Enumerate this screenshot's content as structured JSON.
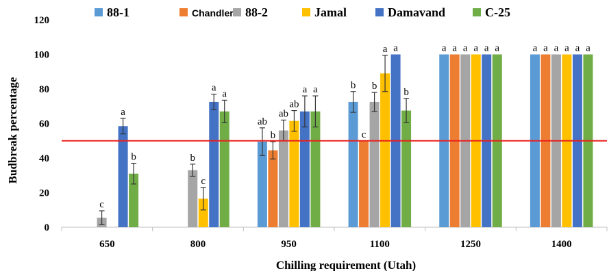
{
  "chart_data": {
    "type": "bar",
    "xlabel": "Chilling requirement (Utah)",
    "ylabel": "Budbreak percentage",
    "ylim": [
      0,
      120
    ],
    "yticks": [
      0,
      20,
      40,
      60,
      80,
      100,
      120
    ],
    "categories": [
      "650",
      "800",
      "950",
      "1100",
      "1250",
      "1400"
    ],
    "legend_position": "top",
    "reference_line": {
      "y": 50,
      "color": "#e8211e"
    },
    "series": [
      {
        "name": "88-1",
        "color": "#5b9bd5",
        "values": [
          0,
          0,
          49.5,
          72.5,
          100,
          100
        ],
        "errors": [
          0,
          0,
          8,
          6,
          0,
          0
        ],
        "labels": [
          "",
          "",
          "ab",
          "b",
          "a",
          "a"
        ]
      },
      {
        "name": "Chandler",
        "color": "#ed7d31",
        "values": [
          0,
          0,
          44.5,
          50,
          100,
          100
        ],
        "errors": [
          0,
          0,
          5,
          0,
          0,
          0
        ],
        "labels": [
          "",
          "",
          "b",
          "c",
          "a",
          "a"
        ]
      },
      {
        "name": "88-2",
        "color": "#a5a5a5",
        "values": [
          5.5,
          33,
          56,
          72.5,
          100,
          100
        ],
        "errors": [
          4,
          3.5,
          6,
          5.5,
          0,
          0
        ],
        "labels": [
          "c",
          "b",
          "ab",
          "b",
          "a",
          "a"
        ]
      },
      {
        "name": "Jamal",
        "color": "#ffc000",
        "values": [
          0,
          16.5,
          61.5,
          89,
          100,
          100
        ],
        "errors": [
          0,
          6.5,
          6,
          10.5,
          0,
          0
        ],
        "labels": [
          "",
          "c",
          "ab",
          "a",
          "a",
          "a"
        ]
      },
      {
        "name": "Damavand",
        "color": "#4472c4",
        "values": [
          58.5,
          72.5,
          67,
          100,
          100,
          100
        ],
        "errors": [
          4.5,
          4.5,
          9,
          0,
          0,
          0
        ],
        "labels": [
          "a",
          "a",
          "a",
          "a",
          "a",
          "a"
        ]
      },
      {
        "name": "C-25",
        "color": "#70ad47",
        "values": [
          31,
          67,
          67,
          67.5,
          100,
          100
        ],
        "errors": [
          6,
          6.5,
          9,
          7,
          0,
          0
        ],
        "labels": [
          "b",
          "a",
          "a",
          "b",
          "a",
          "a"
        ]
      }
    ]
  }
}
